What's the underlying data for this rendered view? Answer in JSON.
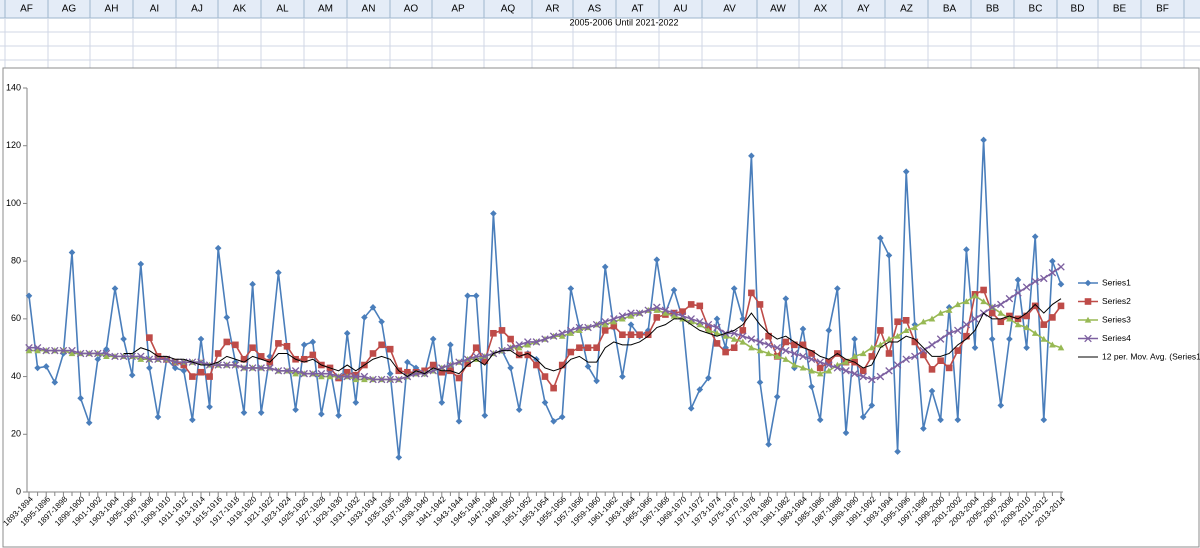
{
  "spreadsheet": {
    "columns": [
      "AF",
      "AG",
      "AH",
      "AI",
      "AJ",
      "AK",
      "AL",
      "AM",
      "AN",
      "AO",
      "AP",
      "AQ",
      "AR",
      "AS",
      "AT",
      "AU",
      "AV",
      "AW",
      "AX",
      "AY",
      "AZ",
      "BA",
      "BB",
      "BC",
      "BD",
      "BE",
      "BF"
    ],
    "cell_text": "2005-2006 Until 2021-2022"
  },
  "chart_data": {
    "type": "line",
    "categories": [
      "1893-1894",
      null,
      "1895-1896",
      null,
      "1897-1898",
      null,
      "1899-1900",
      null,
      "1901-1902",
      null,
      "1903-1904",
      null,
      "1905-1906",
      null,
      "1907-1908",
      null,
      "1909-1910",
      null,
      "1911-1912",
      null,
      "1913-1914",
      null,
      "1915-1916",
      null,
      "1917-1918",
      null,
      "1919-1920",
      null,
      "1921-1922",
      null,
      "1923-1924",
      null,
      "1925-1926",
      null,
      "1927-1928",
      null,
      "1929-1930",
      null,
      "1931-1932",
      null,
      "1933-1934",
      null,
      "1935-1936",
      null,
      "1937-1938",
      null,
      "1939-1940",
      null,
      "1941-1942",
      null,
      "1943-1944",
      null,
      "1945-1946",
      null,
      "1947-1948",
      null,
      "1949-1950",
      null,
      "1951-1952",
      null,
      "1953-1954",
      null,
      "1955-1956",
      null,
      "1957-1958",
      null,
      "1959-1960",
      null,
      "1961-1962",
      null,
      "1963-1964",
      null,
      "1965-1966",
      null,
      "1967-1968",
      null,
      "1969-1970",
      null,
      "1971-1972",
      null,
      "1973-1974",
      null,
      "1975-1976",
      null,
      "1977-1978",
      null,
      "1979-1980",
      null,
      "1981-1982",
      null,
      "1983-1984",
      null,
      "1985-1986",
      null,
      "1987-1988",
      null,
      "1989-1990",
      null,
      "1991-1992",
      null,
      "1993-1994",
      null,
      "1995-1996",
      null,
      "1997-1998",
      null,
      "1999-2000",
      null,
      "2001-2002",
      null,
      "2003-2004",
      null,
      "2005-2006",
      null,
      "2007-2008",
      null,
      "2009-2010",
      null,
      "2011-2012",
      null,
      "2013-2014"
    ],
    "series": [
      {
        "name": "Series1",
        "color": "#4a7ebb",
        "marker": "diamond",
        "values": [
          68,
          43,
          43.5,
          38,
          48,
          83,
          32.5,
          24,
          46,
          49.5,
          70.5,
          53,
          40.5,
          79,
          43,
          26,
          46,
          43,
          42,
          25,
          53,
          29.5,
          84.5,
          60.5,
          45,
          27.5,
          72,
          27.5,
          47,
          76,
          50,
          28.5,
          51,
          52,
          27,
          43,
          26.5,
          55,
          31,
          60.5,
          64,
          59,
          41,
          12,
          45,
          43,
          41,
          53,
          31,
          51,
          24.5,
          68,
          68,
          26.5,
          96.5,
          49,
          43,
          28.5,
          48,
          46,
          31,
          24.5,
          26,
          70.5,
          57,
          43.5,
          38.5,
          78,
          57,
          40,
          58,
          54,
          56,
          80.5,
          62,
          70,
          60,
          29,
          35.5,
          39.5,
          60,
          50,
          70.5,
          60,
          116.5,
          38,
          16.5,
          33,
          67,
          43,
          56.5,
          36.5,
          25,
          56,
          70.5,
          20.5,
          53,
          26,
          30,
          88,
          82,
          14,
          111,
          58,
          22,
          35,
          25,
          64,
          25,
          84,
          50,
          122,
          53,
          30,
          53,
          73.5,
          50,
          88.5,
          25,
          80,
          72
        ]
      },
      {
        "name": "Series2",
        "color": "#be4b48",
        "marker": "square",
        "values": [
          null,
          null,
          null,
          null,
          null,
          null,
          null,
          null,
          null,
          null,
          null,
          null,
          null,
          null,
          53.5,
          47,
          46,
          45,
          44,
          40,
          41.5,
          40,
          48,
          52,
          51,
          46,
          50,
          47,
          45,
          51.5,
          50.5,
          46,
          46,
          47.5,
          44,
          43,
          39.5,
          41.5,
          40.5,
          44,
          48,
          51,
          49.5,
          42,
          41.5,
          41.5,
          42,
          44,
          41.5,
          42,
          39.5,
          44.5,
          50,
          45.5,
          55,
          56,
          53,
          47.5,
          47.5,
          44,
          40,
          36,
          44,
          48.5,
          50,
          50,
          50,
          56,
          57.5,
          54.5,
          54.5,
          54.5,
          54.5,
          60.5,
          61.5,
          62,
          62.5,
          65,
          64.5,
          57,
          51.5,
          48.5,
          50,
          56,
          69,
          65,
          54,
          47,
          52,
          51,
          51,
          48,
          43,
          45,
          48,
          45,
          45,
          42,
          47,
          56,
          48,
          59,
          59.5,
          52,
          47.5,
          42.5,
          45.5,
          43,
          49,
          54,
          68.5,
          70,
          62,
          59,
          61,
          60,
          61,
          64.5,
          58,
          60.5,
          64.5
        ]
      },
      {
        "name": "Series3",
        "color": "#98b954",
        "marker": "triangle",
        "values": [
          49,
          49,
          49,
          49,
          49,
          48,
          48,
          48,
          48,
          47,
          47,
          47,
          47,
          46,
          46,
          46,
          46,
          45,
          45,
          45,
          45,
          44,
          44,
          44,
          44,
          43,
          43,
          43,
          43,
          42,
          42,
          41,
          41,
          41,
          40,
          40,
          40,
          40,
          39,
          39,
          39,
          39,
          39,
          39,
          40,
          41,
          41,
          42,
          43,
          44,
          45,
          46,
          46,
          47,
          48,
          49,
          50,
          50,
          51,
          52,
          53,
          54,
          54,
          55,
          56,
          57,
          58,
          58,
          59,
          60,
          61,
          62,
          63,
          63,
          62,
          61,
          60,
          59,
          58,
          56,
          55,
          54,
          53,
          52,
          50,
          49,
          48,
          47,
          46,
          44,
          43,
          42,
          41,
          42,
          44,
          45,
          47,
          48,
          50,
          51,
          53,
          54,
          56,
          57,
          59,
          60,
          62,
          63,
          65,
          66,
          68,
          66,
          64,
          62,
          60,
          58,
          57,
          55,
          53,
          51,
          50
        ]
      },
      {
        "name": "Series4",
        "color": "#7d60a0",
        "marker": "x",
        "values": [
          50,
          50,
          49,
          49,
          49,
          49,
          48,
          48,
          48,
          48,
          47,
          47,
          47,
          47,
          46,
          46,
          46,
          45,
          45,
          45,
          45,
          44,
          44,
          44,
          44,
          43,
          43,
          43,
          43,
          42,
          42,
          42,
          41,
          41,
          41,
          41,
          40,
          40,
          40,
          40,
          39,
          39,
          39,
          39,
          40,
          41,
          41,
          42,
          43,
          44,
          45,
          46,
          47,
          47,
          48,
          49,
          50,
          51,
          52,
          52,
          53,
          54,
          55,
          56,
          57,
          57,
          58,
          59,
          60,
          61,
          62,
          62,
          63,
          64,
          63,
          62,
          61,
          60,
          59,
          58,
          57,
          55,
          55,
          54,
          53,
          52,
          51,
          50,
          49,
          48,
          47,
          46,
          45,
          44,
          43,
          42,
          41,
          40,
          39,
          40,
          42,
          44,
          46,
          47,
          49,
          51,
          53,
          55,
          56,
          58,
          60,
          62,
          64,
          65,
          67,
          69,
          71,
          73,
          74,
          76,
          78
        ]
      },
      {
        "name": "12 per. Mov. Avg. (Series1)",
        "color": "#000000",
        "marker": "none",
        "values": [
          null,
          null,
          null,
          null,
          null,
          null,
          null,
          null,
          null,
          null,
          null,
          48,
          48,
          50,
          49,
          47,
          47,
          46,
          46,
          45,
          44,
          44,
          45,
          47,
          46,
          45,
          47,
          46,
          45,
          48,
          48,
          46,
          45,
          46,
          44,
          43,
          42,
          44,
          42,
          44,
          46,
          47,
          46,
          42,
          40,
          42,
          41,
          43,
          42,
          42,
          41,
          44,
          46,
          44,
          48,
          49,
          49,
          47,
          48,
          46,
          43,
          42,
          43,
          46,
          47,
          45,
          45,
          50,
          52,
          51,
          51,
          52,
          54,
          57,
          58,
          60,
          60,
          58,
          56,
          55,
          54,
          55,
          56,
          58,
          62,
          58,
          55,
          53,
          54,
          52,
          50,
          49,
          47,
          46,
          48,
          46,
          45,
          43,
          44,
          50,
          52,
          52,
          54,
          53,
          50,
          47,
          47,
          48,
          51,
          53,
          56,
          62,
          60,
          60,
          61,
          60,
          62,
          65,
          62,
          65,
          67
        ]
      }
    ],
    "ylim": [
      0,
      140
    ],
    "yticks": [
      0,
      20,
      40,
      60,
      80,
      100,
      120,
      140
    ],
    "grid": false,
    "legend": "right"
  }
}
